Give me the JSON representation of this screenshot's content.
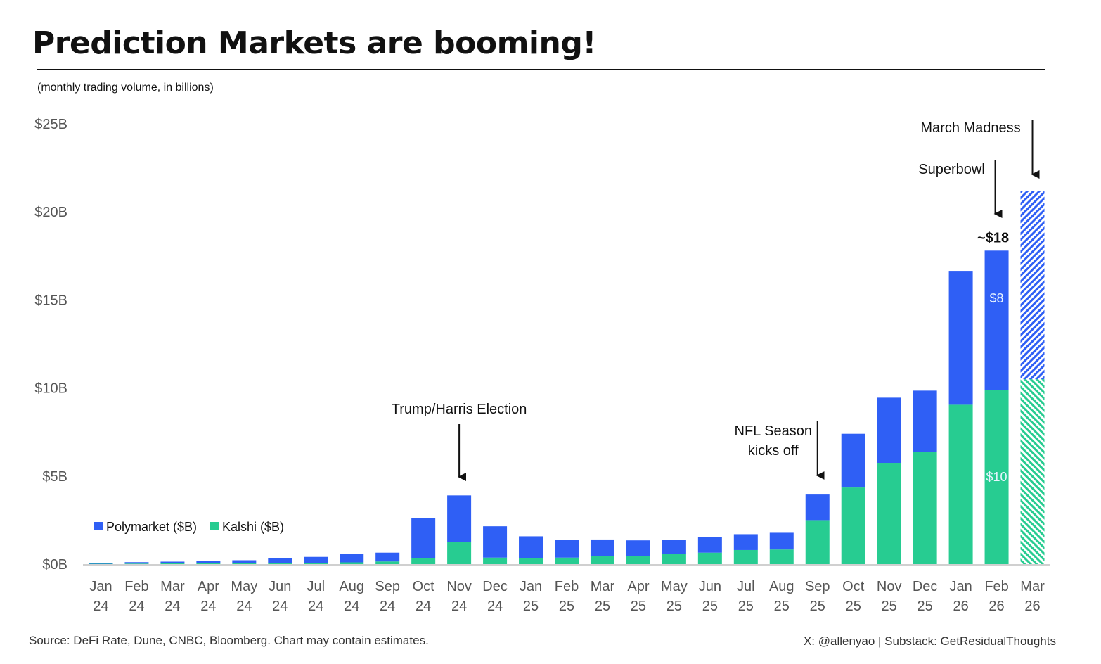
{
  "page": {
    "title": "Prediction Markets are booming!",
    "subtitle": "(monthly trading volume, in billions)",
    "source": "Source: DeFi Rate, Dune, CNBC, Bloomberg. Chart may contain estimates.",
    "credit": "X: @allenyao | Substack: GetResidualThoughts"
  },
  "colors": {
    "polymarket": "#2f5ff5",
    "kalshi": "#27cc91",
    "axis": "#d0d0d0"
  },
  "chart_data": {
    "type": "bar",
    "stacked": true,
    "title": "Prediction Markets are booming!",
    "ylabel": "monthly trading volume, in billions",
    "ylim": [
      0,
      25
    ],
    "yticks": [
      {
        "value": 0,
        "label": "$0B"
      },
      {
        "value": 5,
        "label": "$5B"
      },
      {
        "value": 10,
        "label": "$10B"
      },
      {
        "value": 15,
        "label": "$15B"
      },
      {
        "value": 20,
        "label": "$20B"
      },
      {
        "value": 25,
        "label": "$25B"
      }
    ],
    "categories": [
      {
        "month": "Jan",
        "year": "24"
      },
      {
        "month": "Feb",
        "year": "24"
      },
      {
        "month": "Mar",
        "year": "24"
      },
      {
        "month": "Apr",
        "year": "24"
      },
      {
        "month": "May",
        "year": "24"
      },
      {
        "month": "Jun",
        "year": "24"
      },
      {
        "month": "Jul",
        "year": "24"
      },
      {
        "month": "Aug",
        "year": "24"
      },
      {
        "month": "Sep",
        "year": "24"
      },
      {
        "month": "Oct",
        "year": "24"
      },
      {
        "month": "Nov",
        "year": "24"
      },
      {
        "month": "Dec",
        "year": "24"
      },
      {
        "month": "Jan",
        "year": "25"
      },
      {
        "month": "Feb",
        "year": "25"
      },
      {
        "month": "Mar",
        "year": "25"
      },
      {
        "month": "Apr",
        "year": "25"
      },
      {
        "month": "May",
        "year": "25"
      },
      {
        "month": "Jun",
        "year": "25"
      },
      {
        "month": "Jul",
        "year": "25"
      },
      {
        "month": "Aug",
        "year": "25"
      },
      {
        "month": "Sep",
        "year": "25"
      },
      {
        "month": "Oct",
        "year": "25"
      },
      {
        "month": "Nov",
        "year": "25"
      },
      {
        "month": "Dec",
        "year": "25"
      },
      {
        "month": "Jan",
        "year": "26"
      },
      {
        "month": "Feb",
        "year": "26"
      },
      {
        "month": "Mar",
        "year": "26"
      }
    ],
    "series": [
      {
        "name": "Kalshi ($B)",
        "color_key": "kalshi",
        "values": [
          0.02,
          0.03,
          0.04,
          0.05,
          0.05,
          0.06,
          0.07,
          0.1,
          0.15,
          0.35,
          1.25,
          0.37,
          0.35,
          0.37,
          0.45,
          0.45,
          0.57,
          0.65,
          0.8,
          0.83,
          2.5,
          4.35,
          5.75,
          6.35,
          9.05,
          9.9,
          10.5
        ]
      },
      {
        "name": "Polymarket ($B)",
        "color_key": "polymarket",
        "values": [
          0.06,
          0.08,
          0.1,
          0.13,
          0.17,
          0.27,
          0.34,
          0.47,
          0.5,
          2.28,
          2.65,
          1.78,
          1.23,
          1.0,
          0.95,
          0.9,
          0.8,
          0.9,
          0.9,
          0.95,
          1.45,
          3.05,
          3.7,
          3.5,
          7.6,
          7.9,
          10.7
        ]
      }
    ],
    "projected_index": 26,
    "legend": [
      "Polymarket ($B)",
      "Kalshi ($B)"
    ],
    "data_labels": {
      "total": {
        "index": 25,
        "text": "~$18"
      },
      "polymarket": {
        "index": 25,
        "text": "$8"
      },
      "kalshi": {
        "index": 25,
        "text": "$10"
      }
    },
    "annotations": [
      {
        "index": 10,
        "lines": [
          "Trump/Harris Election"
        ]
      },
      {
        "index": 20,
        "lines": [
          "NFL Season",
          "kicks off"
        ]
      },
      {
        "index": 25,
        "lines": [
          "Superbowl"
        ]
      },
      {
        "index": 26,
        "lines": [
          "March Madness"
        ]
      }
    ]
  }
}
